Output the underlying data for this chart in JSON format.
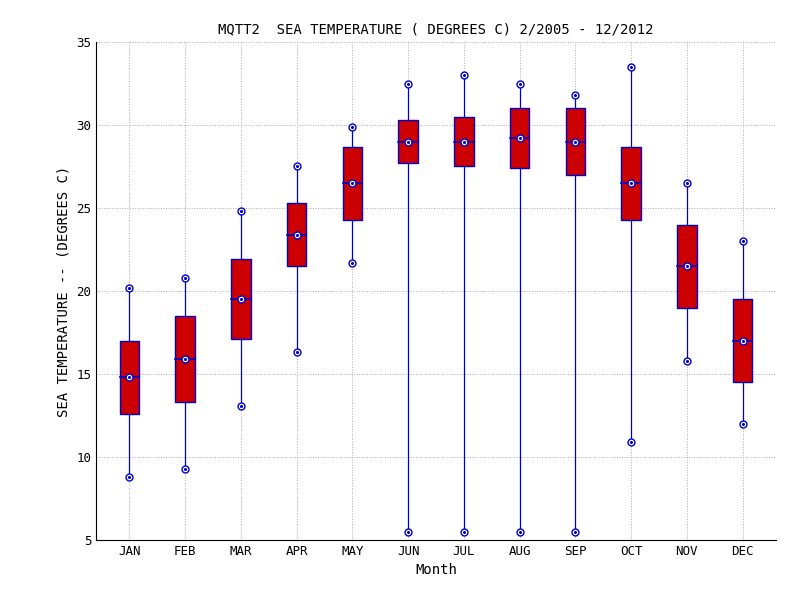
{
  "title": "MQTT2  SEA TEMPERATURE ( DEGREES C) 2/2005 - 12/2012",
  "xlabel": "Month",
  "ylabel": "SEA TEMPERATURE -- (DEGREES C)",
  "months": [
    "JAN",
    "FEB",
    "MAR",
    "APR",
    "MAY",
    "JUN",
    "JUL",
    "AUG",
    "SEP",
    "OCT",
    "NOV",
    "DEC"
  ],
  "ylim": [
    5,
    35
  ],
  "yticks": [
    5,
    10,
    15,
    20,
    25,
    30,
    35
  ],
  "mean": [
    14.8,
    15.9,
    19.5,
    23.4,
    26.5,
    29.0,
    29.0,
    29.2,
    29.0,
    26.5,
    21.5,
    17.0
  ],
  "std": [
    2.2,
    2.6,
    2.4,
    1.9,
    2.2,
    1.3,
    1.5,
    1.8,
    2.0,
    2.2,
    2.5,
    2.5
  ],
  "whisker_low": [
    8.8,
    9.3,
    13.1,
    16.3,
    21.7,
    5.5,
    5.5,
    5.5,
    5.5,
    10.9,
    15.8,
    12.0
  ],
  "whisker_high": [
    20.2,
    20.8,
    24.8,
    27.5,
    29.9,
    32.5,
    33.0,
    32.5,
    31.8,
    33.5,
    26.5,
    23.0
  ],
  "box_color": "#CC0000",
  "line_color": "#0000CC",
  "background_color": "#ffffff",
  "grid_color": "#aaaaaa",
  "title_fontsize": 10,
  "label_fontsize": 10,
  "tick_fontsize": 9,
  "box_width": 0.35,
  "marker_size": 5
}
